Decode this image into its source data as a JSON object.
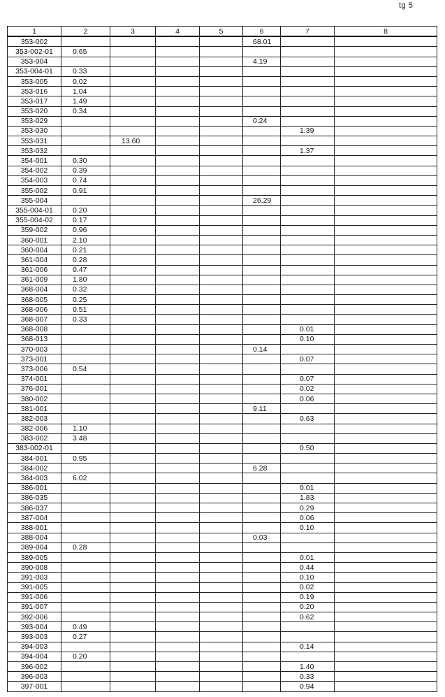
{
  "page_label": "tg 5",
  "columns": [
    "1",
    "2",
    "3",
    "4",
    "5",
    "6",
    "7",
    "8"
  ],
  "rows": [
    [
      "353-002",
      "",
      "",
      "",
      "",
      "68.01",
      "",
      ""
    ],
    [
      "353-002-01",
      "0.65",
      "",
      "",
      "",
      "",
      "",
      ""
    ],
    [
      "353-004",
      "",
      "",
      "",
      "",
      "4.19",
      "",
      ""
    ],
    [
      "353-004-01",
      "0.33",
      "",
      "",
      "",
      "",
      "",
      ""
    ],
    [
      "353-005",
      "0.02",
      "",
      "",
      "",
      "",
      "",
      ""
    ],
    [
      "353-016",
      "1.04",
      "",
      "",
      "",
      "",
      "",
      ""
    ],
    [
      "353-017",
      "1.49",
      "",
      "",
      "",
      "",
      "",
      ""
    ],
    [
      "353-020",
      "0.34",
      "",
      "",
      "",
      "",
      "",
      ""
    ],
    [
      "353-029",
      "",
      "",
      "",
      "",
      "0.24",
      "",
      ""
    ],
    [
      "353-030",
      "",
      "",
      "",
      "",
      "",
      "1.39",
      ""
    ],
    [
      "353-031",
      "",
      "13.60",
      "",
      "",
      "",
      "",
      ""
    ],
    [
      "353-032",
      "",
      "",
      "",
      "",
      "",
      "1.37",
      ""
    ],
    [
      "354-001",
      "0.30",
      "",
      "",
      "",
      "",
      "",
      ""
    ],
    [
      "354-002",
      "0.39",
      "",
      "",
      "",
      "",
      "",
      ""
    ],
    [
      "354-003",
      "0.74",
      "",
      "",
      "",
      "",
      "",
      ""
    ],
    [
      "355-002",
      "0.91",
      "",
      "",
      "",
      "",
      "",
      ""
    ],
    [
      "355-004",
      "",
      "",
      "",
      "",
      "26.29",
      "",
      ""
    ],
    [
      "355-004-01",
      "0.20",
      "",
      "",
      "",
      "",
      "",
      ""
    ],
    [
      "355-004-02",
      "0.17",
      "",
      "",
      "",
      "",
      "",
      ""
    ],
    [
      "359-002",
      "0.96",
      "",
      "",
      "",
      "",
      "",
      ""
    ],
    [
      "360-001",
      "2.10",
      "",
      "",
      "",
      "",
      "",
      ""
    ],
    [
      "360-004",
      "0.21",
      "",
      "",
      "",
      "",
      "",
      ""
    ],
    [
      "361-004",
      "0.28",
      "",
      "",
      "",
      "",
      "",
      ""
    ],
    [
      "361-006",
      "0.47",
      "",
      "",
      "",
      "",
      "",
      ""
    ],
    [
      "361-009",
      "1.80",
      "",
      "",
      "",
      "",
      "",
      ""
    ],
    [
      "368-004",
      "0.32",
      "",
      "",
      "",
      "",
      "",
      ""
    ],
    [
      "368-005",
      "0.25",
      "",
      "",
      "",
      "",
      "",
      ""
    ],
    [
      "368-006",
      "0.51",
      "",
      "",
      "",
      "",
      "",
      ""
    ],
    [
      "368-007",
      "0.33",
      "",
      "",
      "",
      "",
      "",
      ""
    ],
    [
      "368-008",
      "",
      "",
      "",
      "",
      "",
      "0.01",
      ""
    ],
    [
      "368-013",
      "",
      "",
      "",
      "",
      "",
      "0.10",
      ""
    ],
    [
      "370-003",
      "",
      "",
      "",
      "",
      "0.14",
      "",
      ""
    ],
    [
      "373-001",
      "",
      "",
      "",
      "",
      "",
      "0.07",
      ""
    ],
    [
      "373-006",
      "0.54",
      "",
      "",
      "",
      "",
      "",
      ""
    ],
    [
      "374-001",
      "",
      "",
      "",
      "",
      "",
      "0.07",
      ""
    ],
    [
      "376-001",
      "",
      "",
      "",
      "",
      "",
      "0.02",
      ""
    ],
    [
      "380-002",
      "",
      "",
      "",
      "",
      "",
      "0.06",
      ""
    ],
    [
      "381-001",
      "",
      "",
      "",
      "",
      "9.11",
      "",
      ""
    ],
    [
      "382-003",
      "",
      "",
      "",
      "",
      "",
      "0.63",
      ""
    ],
    [
      "382-006",
      "1.10",
      "",
      "",
      "",
      "",
      "",
      ""
    ],
    [
      "383-002",
      "3.48",
      "",
      "",
      "",
      "",
      "",
      ""
    ],
    [
      "383-002-01",
      "",
      "",
      "",
      "",
      "",
      "0.50",
      ""
    ],
    [
      "384-001",
      "0.95",
      "",
      "",
      "",
      "",
      "",
      ""
    ],
    [
      "384-002",
      "",
      "",
      "",
      "",
      "6.28",
      "",
      ""
    ],
    [
      "384-003",
      "6.02",
      "",
      "",
      "",
      "",
      "",
      ""
    ],
    [
      "386-001",
      "",
      "",
      "",
      "",
      "",
      "0.01",
      ""
    ],
    [
      "386-035",
      "",
      "",
      "",
      "",
      "",
      "1.83",
      ""
    ],
    [
      "386-037",
      "",
      "",
      "",
      "",
      "",
      "0.29",
      ""
    ],
    [
      "387-004",
      "",
      "",
      "",
      "",
      "",
      "0.06",
      ""
    ],
    [
      "388-001",
      "",
      "",
      "",
      "",
      "",
      "0.10",
      ""
    ],
    [
      "388-004",
      "",
      "",
      "",
      "",
      "0.03",
      "",
      ""
    ],
    [
      "389-004",
      "0.28",
      "",
      "",
      "",
      "",
      "",
      ""
    ],
    [
      "389-005",
      "",
      "",
      "",
      "",
      "",
      "0.01",
      ""
    ],
    [
      "390-008",
      "",
      "",
      "",
      "",
      "",
      "0.44",
      ""
    ],
    [
      "391-003",
      "",
      "",
      "",
      "",
      "",
      "0.10",
      ""
    ],
    [
      "391-005",
      "",
      "",
      "",
      "",
      "",
      "0.02",
      ""
    ],
    [
      "391-006",
      "",
      "",
      "",
      "",
      "",
      "0.19",
      ""
    ],
    [
      "391-007",
      "",
      "",
      "",
      "",
      "",
      "0.20",
      ""
    ],
    [
      "392-006",
      "",
      "",
      "",
      "",
      "",
      "0.62",
      ""
    ],
    [
      "393-004",
      "0.49",
      "",
      "",
      "",
      "",
      "",
      ""
    ],
    [
      "393-003",
      "0.27",
      "",
      "",
      "",
      "",
      "",
      ""
    ],
    [
      "394-003",
      "",
      "",
      "",
      "",
      "",
      "0.14",
      ""
    ],
    [
      "394-004",
      "0.20",
      "",
      "",
      "",
      "",
      "",
      ""
    ],
    [
      "396-002",
      "",
      "",
      "",
      "",
      "",
      "1.40",
      ""
    ],
    [
      "396-003",
      "",
      "",
      "",
      "",
      "",
      "0.33",
      ""
    ],
    [
      "397-001",
      "",
      "",
      "",
      "",
      "",
      "0.94",
      ""
    ]
  ]
}
